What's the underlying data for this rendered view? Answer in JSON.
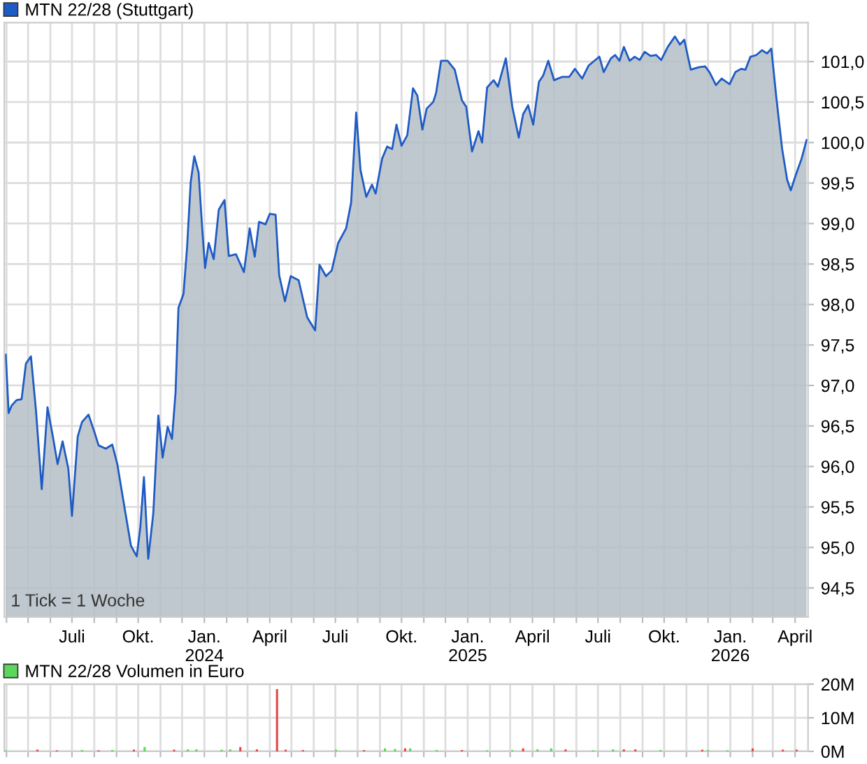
{
  "chart_data": [
    {
      "type": "area",
      "legend": "top left",
      "grid": true,
      "annotations": [
        "1 Tick = 1 Woche"
      ],
      "xlim": [
        "2023-03-29",
        "2026-04-19"
      ],
      "ylim": [
        94.14,
        101.48
      ],
      "yticks": [
        {
          "value": 94.5,
          "label": "94,5"
        },
        {
          "value": 95.0,
          "label": "95,0"
        },
        {
          "value": 95.5,
          "label": "95,5"
        },
        {
          "value": 96.0,
          "label": "96,0"
        },
        {
          "value": 96.5,
          "label": "96,5"
        },
        {
          "value": 97.0,
          "label": "97,0"
        },
        {
          "value": 97.5,
          "label": "97,5"
        },
        {
          "value": 98.0,
          "label": "98,0"
        },
        {
          "value": 98.5,
          "label": "98,5"
        },
        {
          "value": 99.0,
          "label": "99,0"
        },
        {
          "value": 99.5,
          "label": "99,5"
        },
        {
          "value": 100.0,
          "label": "100,0"
        },
        {
          "value": 100.5,
          "label": "100,5"
        },
        {
          "value": 101.0,
          "label": "101,0"
        }
      ],
      "xticks": [
        {
          "value": "2023-04-01",
          "label": null
        },
        {
          "value": "2023-05-01",
          "label": null
        },
        {
          "value": "2023-06-01",
          "label": null
        },
        {
          "value": "2023-07-01",
          "label": "Juli"
        },
        {
          "value": "2023-08-01",
          "label": null
        },
        {
          "value": "2023-09-01",
          "label": null
        },
        {
          "value": "2023-10-01",
          "label": "Okt."
        },
        {
          "value": "2023-11-01",
          "label": null
        },
        {
          "value": "2023-12-01",
          "label": null
        },
        {
          "value": "2024-01-01",
          "label": "Jan.\n2024"
        },
        {
          "value": "2024-02-01",
          "label": null
        },
        {
          "value": "2024-03-01",
          "label": null
        },
        {
          "value": "2024-04-01",
          "label": "April"
        },
        {
          "value": "2024-05-01",
          "label": null
        },
        {
          "value": "2024-06-01",
          "label": null
        },
        {
          "value": "2024-07-01",
          "label": "Juli"
        },
        {
          "value": "2024-08-01",
          "label": null
        },
        {
          "value": "2024-09-01",
          "label": null
        },
        {
          "value": "2024-10-01",
          "label": "Okt."
        },
        {
          "value": "2024-11-01",
          "label": null
        },
        {
          "value": "2024-12-01",
          "label": null
        },
        {
          "value": "2025-01-01",
          "label": "Jan.\n2025"
        },
        {
          "value": "2025-02-01",
          "label": null
        },
        {
          "value": "2025-03-01",
          "label": null
        },
        {
          "value": "2025-04-01",
          "label": "April"
        },
        {
          "value": "2025-05-01",
          "label": null
        },
        {
          "value": "2025-06-01",
          "label": null
        },
        {
          "value": "2025-07-01",
          "label": "Juli"
        },
        {
          "value": "2025-08-01",
          "label": null
        },
        {
          "value": "2025-09-01",
          "label": null
        },
        {
          "value": "2025-10-01",
          "label": "Okt."
        },
        {
          "value": "2025-11-01",
          "label": null
        },
        {
          "value": "2025-12-01",
          "label": null
        },
        {
          "value": "2026-01-01",
          "label": "Jan.\n2026"
        },
        {
          "value": "2026-02-01",
          "label": null
        },
        {
          "value": "2026-03-01",
          "label": null
        },
        {
          "value": "2026-04-01",
          "label": "April"
        }
      ],
      "x": [
        "2023-03-31",
        "2023-04-04",
        "2023-04-08",
        "2023-04-15",
        "2023-04-22",
        "2023-04-28",
        "2023-05-05",
        "2023-05-12",
        "2023-05-20",
        "2023-05-28",
        "2023-06-05",
        "2023-06-11",
        "2023-06-18",
        "2023-06-26",
        "2023-07-01",
        "2023-07-09",
        "2023-07-15",
        "2023-07-24",
        "2023-08-01",
        "2023-08-07",
        "2023-08-17",
        "2023-08-26",
        "2023-09-02",
        "2023-09-10",
        "2023-09-21",
        "2023-09-29",
        "2023-10-04",
        "2023-10-09",
        "2023-10-15",
        "2023-10-22",
        "2023-10-29",
        "2023-11-04",
        "2023-11-11",
        "2023-11-17",
        "2023-11-22",
        "2023-11-26",
        "2023-12-03",
        "2023-12-08",
        "2023-12-13",
        "2023-12-18",
        "2023-12-24",
        "2023-12-29",
        "2024-01-02",
        "2024-01-07",
        "2024-01-14",
        "2024-01-21",
        "2024-01-29",
        "2024-02-04",
        "2024-02-14",
        "2024-02-25",
        "2024-03-04",
        "2024-03-11",
        "2024-03-17",
        "2024-03-26",
        "2024-04-01",
        "2024-04-09",
        "2024-04-14",
        "2024-04-22",
        "2024-04-30",
        "2024-05-11",
        "2024-05-23",
        "2024-06-03",
        "2024-06-09",
        "2024-06-18",
        "2024-06-26",
        "2024-07-05",
        "2024-07-16",
        "2024-07-23",
        "2024-07-30",
        "2024-08-05",
        "2024-08-13",
        "2024-08-21",
        "2024-08-26",
        "2024-09-04",
        "2024-09-11",
        "2024-09-18",
        "2024-09-24",
        "2024-10-01",
        "2024-10-09",
        "2024-10-17",
        "2024-10-23",
        "2024-10-30",
        "2024-11-05",
        "2024-11-14",
        "2024-11-18",
        "2024-11-25",
        "2024-12-04",
        "2024-12-14",
        "2024-12-24",
        "2024-12-30",
        "2025-01-07",
        "2025-01-16",
        "2025-01-21",
        "2025-01-28",
        "2025-02-06",
        "2025-02-12",
        "2025-02-23",
        "2025-03-04",
        "2025-03-13",
        "2025-03-19",
        "2025-03-26",
        "2025-04-02",
        "2025-04-10",
        "2025-04-16",
        "2025-04-23",
        "2025-05-01",
        "2025-05-12",
        "2025-05-22",
        "2025-05-30",
        "2025-06-09",
        "2025-06-18",
        "2025-07-03",
        "2025-07-09",
        "2025-07-19",
        "2025-07-25",
        "2025-07-31",
        "2025-08-06",
        "2025-08-14",
        "2025-08-21",
        "2025-08-28",
        "2025-09-04",
        "2025-09-12",
        "2025-09-20",
        "2025-09-27",
        "2025-10-06",
        "2025-10-16",
        "2025-10-23",
        "2025-10-29",
        "2025-11-07",
        "2025-11-18",
        "2025-11-27",
        "2025-12-03",
        "2025-12-12",
        "2025-12-20",
        "2025-12-31",
        "2026-01-08",
        "2026-01-16",
        "2026-01-22",
        "2026-01-29",
        "2026-02-06",
        "2026-02-14",
        "2026-02-21",
        "2026-02-27",
        "2026-03-06",
        "2026-03-14",
        "2026-03-21",
        "2026-03-26",
        "2026-04-02",
        "2026-04-10",
        "2026-04-17"
      ],
      "series": [
        {
          "name": "MTN 22/28 (Stuttgart)",
          "color": "#1f5bc4",
          "values": [
            97.38,
            96.66,
            96.75,
            96.82,
            96.83,
            97.27,
            97.36,
            96.69,
            95.72,
            96.73,
            96.34,
            96.03,
            96.31,
            95.97,
            95.39,
            96.37,
            96.55,
            96.64,
            96.43,
            96.26,
            96.22,
            96.27,
            96.03,
            95.6,
            95.02,
            94.89,
            95.25,
            95.87,
            94.86,
            95.42,
            96.63,
            96.11,
            96.49,
            96.34,
            96.92,
            97.96,
            98.13,
            98.71,
            99.51,
            99.83,
            99.63,
            98.94,
            98.45,
            98.76,
            98.56,
            99.17,
            99.29,
            98.6,
            98.62,
            98.4,
            98.94,
            98.59,
            99.02,
            98.99,
            99.12,
            99.11,
            98.36,
            98.04,
            98.35,
            98.3,
            97.84,
            97.68,
            98.49,
            98.35,
            98.42,
            98.76,
            98.94,
            99.26,
            100.37,
            99.66,
            99.33,
            99.48,
            99.37,
            99.8,
            99.95,
            99.92,
            100.22,
            99.96,
            100.09,
            100.67,
            100.58,
            100.16,
            100.42,
            100.5,
            100.61,
            101.01,
            101.01,
            100.9,
            100.52,
            100.44,
            99.89,
            100.14,
            100.0,
            100.68,
            100.77,
            100.69,
            101.04,
            100.44,
            100.06,
            100.35,
            100.46,
            100.22,
            100.75,
            100.83,
            101.01,
            100.77,
            100.81,
            100.81,
            100.91,
            100.79,
            100.95,
            101.06,
            100.87,
            101.04,
            101.08,
            101.01,
            101.18,
            101.01,
            101.06,
            101.02,
            101.12,
            101.07,
            101.08,
            101.02,
            101.18,
            101.31,
            101.21,
            101.27,
            100.9,
            100.93,
            100.94,
            100.87,
            100.71,
            100.79,
            100.72,
            100.87,
            100.91,
            100.9,
            101.06,
            101.08,
            101.14,
            101.1,
            101.16,
            100.55,
            99.92,
            99.54,
            99.41,
            99.6,
            99.8,
            100.03
          ]
        }
      ]
    },
    {
      "type": "bar",
      "legend": "top left",
      "grid": true,
      "tick_labels": "y",
      "xlim": [
        "2023-03-29",
        "2026-04-19"
      ],
      "ylim": [
        0,
        20000000
      ],
      "yticks": [
        {
          "value": 0,
          "label": "0M"
        },
        {
          "value": 10000000,
          "label": "10M"
        },
        {
          "value": 20000000,
          "label": "20M"
        }
      ],
      "xticks": [
        {
          "value": "2023-04-01",
          "label": null
        },
        {
          "value": "2023-05-01",
          "label": null
        },
        {
          "value": "2023-06-01",
          "label": null
        },
        {
          "value": "2023-07-01",
          "label": null
        },
        {
          "value": "2023-08-01",
          "label": null
        },
        {
          "value": "2023-09-01",
          "label": null
        },
        {
          "value": "2023-10-01",
          "label": null
        },
        {
          "value": "2023-11-01",
          "label": null
        },
        {
          "value": "2023-12-01",
          "label": null
        },
        {
          "value": "2024-01-01",
          "label": null
        },
        {
          "value": "2024-02-01",
          "label": null
        },
        {
          "value": "2024-03-01",
          "label": null
        },
        {
          "value": "2024-04-01",
          "label": null
        },
        {
          "value": "2024-05-01",
          "label": null
        },
        {
          "value": "2024-06-01",
          "label": null
        },
        {
          "value": "2024-07-01",
          "label": null
        },
        {
          "value": "2024-08-01",
          "label": null
        },
        {
          "value": "2024-09-01",
          "label": null
        },
        {
          "value": "2024-10-01",
          "label": null
        },
        {
          "value": "2024-11-01",
          "label": null
        },
        {
          "value": "2024-12-01",
          "label": null
        },
        {
          "value": "2025-01-01",
          "label": null
        },
        {
          "value": "2025-02-01",
          "label": null
        },
        {
          "value": "2025-03-01",
          "label": null
        },
        {
          "value": "2025-04-01",
          "label": null
        },
        {
          "value": "2025-05-01",
          "label": null
        },
        {
          "value": "2025-06-01",
          "label": null
        },
        {
          "value": "2025-07-01",
          "label": null
        },
        {
          "value": "2025-08-01",
          "label": null
        },
        {
          "value": "2025-09-01",
          "label": null
        },
        {
          "value": "2025-10-01",
          "label": null
        },
        {
          "value": "2025-11-01",
          "label": null
        },
        {
          "value": "2025-12-01",
          "label": null
        },
        {
          "value": "2026-01-01",
          "label": null
        },
        {
          "value": "2026-02-01",
          "label": null
        },
        {
          "value": "2026-03-01",
          "label": null
        },
        {
          "value": "2026-04-01",
          "label": null
        }
      ],
      "x": [
        "2023-03-31",
        "2023-05-14",
        "2023-06-10",
        "2023-07-15",
        "2023-08-07",
        "2023-08-26",
        "2023-09-25",
        "2023-10-10",
        "2023-11-20",
        "2023-12-09",
        "2023-12-21",
        "2024-01-25",
        "2024-02-06",
        "2024-02-20",
        "2024-03-14",
        "2024-04-11",
        "2024-04-23",
        "2024-05-17",
        "2024-07-02",
        "2024-08-10",
        "2024-09-08",
        "2024-09-22",
        "2024-10-06",
        "2024-10-13",
        "2024-11-19",
        "2024-12-24",
        "2025-01-28",
        "2025-03-04",
        "2025-03-19",
        "2025-04-08",
        "2025-04-27",
        "2025-05-17",
        "2025-06-24",
        "2025-07-22",
        "2025-08-06",
        "2025-08-22",
        "2025-09-26",
        "2025-11-23",
        "2025-12-01",
        "2025-12-28",
        "2026-02-01",
        "2026-03-15",
        "2026-04-03"
      ],
      "series": [
        {
          "name": "MTN 22/28 Volumen in Euro",
          "color": "#5cd65c",
          "colors": [
            "#5cd65c",
            "#e04848",
            "#e04848",
            "#5cd65c",
            "#e04848",
            "#5cd65c",
            "#e04848",
            "#5cd65c",
            "#e04848",
            "#5cd65c",
            "#5cd65c",
            "#5cd65c",
            "#5cd65c",
            "#e04848",
            "#e04848",
            "#e04848",
            "#e04848",
            "#e04848",
            "#5cd65c",
            "#e04848",
            "#5cd65c",
            "#5cd65c",
            "#e04848",
            "#5cd65c",
            "#5cd65c",
            "#e04848",
            "#5cd65c",
            "#5cd65c",
            "#e04848",
            "#5cd65c",
            "#5cd65c",
            "#e04848",
            "#5cd65c",
            "#5cd65c",
            "#e04848",
            "#e04848",
            "#5cd65c",
            "#e04848",
            "#5cd65c",
            "#5cd65c",
            "#e04848",
            "#e04848",
            "#e04848"
          ],
          "values": [
            300000,
            500000,
            300000,
            400000,
            300000,
            400000,
            500000,
            1300000,
            500000,
            600000,
            600000,
            500000,
            600000,
            1300000,
            600000,
            18500000,
            500000,
            400000,
            500000,
            400000,
            900000,
            700000,
            900000,
            900000,
            400000,
            400000,
            300000,
            400000,
            900000,
            600000,
            900000,
            600000,
            300000,
            600000,
            600000,
            600000,
            400000,
            500000,
            400000,
            300000,
            900000,
            500000,
            500000
          ]
        }
      ]
    }
  ]
}
